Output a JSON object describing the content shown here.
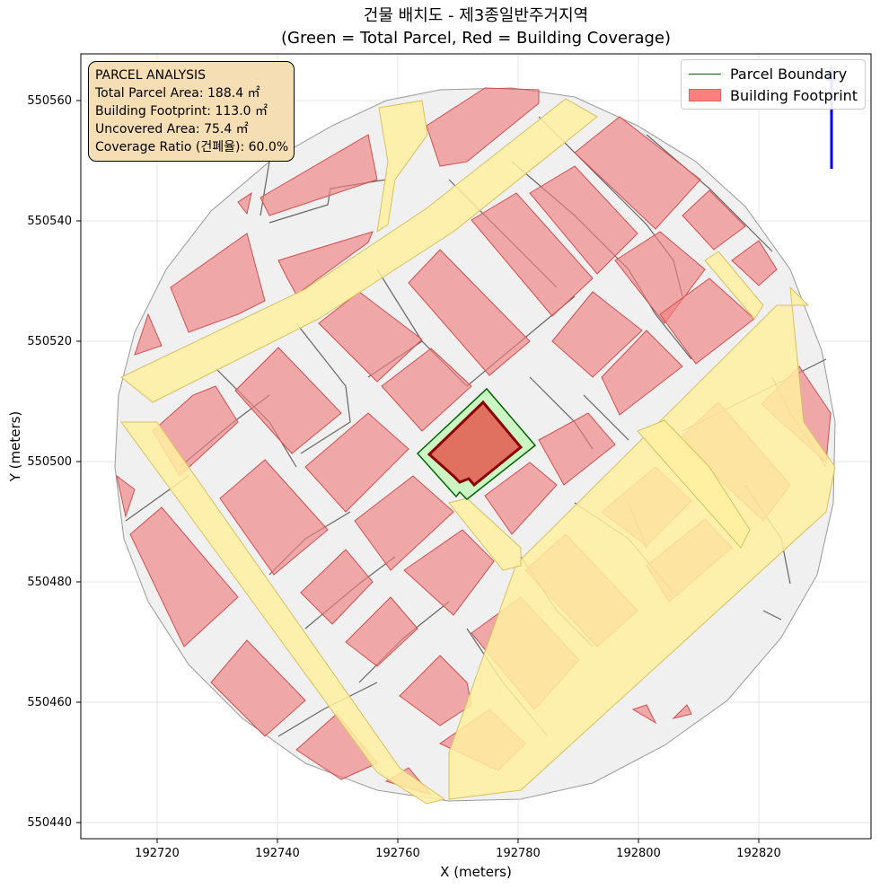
{
  "title": {
    "line1": "건물 배치도 - 제3종일반주거지역",
    "line2": "(Green = Total Parcel, Red = Building Coverage)"
  },
  "axes": {
    "xlabel": "X (meters)",
    "ylabel": "Y (meters)",
    "xticks": [
      "192720",
      "192740",
      "192760",
      "192780",
      "192800",
      "192820"
    ],
    "yticks": [
      "550440",
      "550460",
      "550480",
      "550500",
      "550520",
      "550540",
      "550560"
    ],
    "xlim": [
      192707,
      192839
    ],
    "ylim": [
      550437,
      550568
    ],
    "grid": true
  },
  "info_box": {
    "heading": "PARCEL ANALYSIS",
    "total_area": "Total Parcel Area: 188.4 ㎡",
    "footprint": "Building Footprint: 113.0 ㎡",
    "uncovered": "Uncovered Area: 75.4 ㎡",
    "coverage": "Coverage Ratio (건폐율): 60.0%"
  },
  "legend": {
    "parcel": "Parcel Boundary",
    "building": "Building Footprint"
  },
  "colors": {
    "parcel_fill": "#c8f5c0",
    "parcel_edge": "#006400",
    "building_fill": "#e07060",
    "building_edge": "#8b0000",
    "context_building": "#f08080",
    "road": "#fff0a0",
    "ground": "#f0f0f0",
    "north_arrow": "#0000ff"
  },
  "icons": [
    "north-arrow-icon"
  ]
}
